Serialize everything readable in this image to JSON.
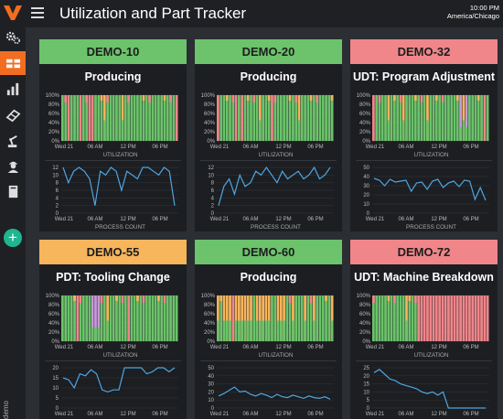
{
  "header": {
    "title": "Utilization and Part Tracker",
    "time": "10:00 PM",
    "timezone": "America/Chicago"
  },
  "sidebar": {
    "footer_text": "demo"
  },
  "colors": {
    "green": "#6cc36b",
    "red": "#f0868a",
    "yellow": "#f7b55c",
    "purple": "#c79ad8",
    "orange_accent": "#f26d21",
    "teal": "#1fb58f",
    "line": "#4ea6e2"
  },
  "captions": {
    "utilization": "UTILIZATION",
    "process_count": "PROCESS COUNT"
  },
  "time_labels": [
    "Wed 21",
    "06 AM",
    "12 PM",
    "06 PM"
  ],
  "util_ticks": [
    "100%",
    "80%",
    "60%",
    "40%",
    "20%",
    "0%"
  ],
  "machines": [
    {
      "id": "DEMO-10",
      "state": "Producing",
      "status": "green",
      "util_pattern": "GGRGGGRGGRRGGGYGGGGGYGGGGGGGGGGGGGGGGGR",
      "y_ticks": [
        "12",
        "10",
        "8",
        "6",
        "4",
        "2",
        "0"
      ],
      "y_max": 12,
      "process_count": [
        12,
        8,
        11,
        12,
        11,
        9,
        2,
        11,
        10,
        12,
        11,
        6,
        11,
        10,
        9,
        12,
        12,
        11,
        10,
        12,
        11,
        2
      ]
    },
    {
      "id": "DEMO-20",
      "state": "Producing",
      "status": "green",
      "util_pattern": "RGGGGGRGRGGGGGYGGGRGGGGGGGGYGGGGGGGGGGG",
      "y_ticks": [
        "12",
        "10",
        "8",
        "6",
        "4",
        "2",
        "0"
      ],
      "y_max": 12,
      "process_count": [
        2,
        7,
        9,
        5,
        10,
        7,
        8,
        11,
        10,
        12,
        10,
        8,
        11,
        9,
        10,
        11,
        9,
        10,
        12,
        9,
        10,
        12
      ]
    },
    {
      "id": "DEMO-32",
      "state": "UDT: Program Adjustment",
      "status": "red",
      "util_pattern": "RGGGGYGGGGYGGGGGGGYGGGGGGGGGGPYPGGGGGRG",
      "y_ticks": [
        "50",
        "40",
        "30",
        "20",
        "10",
        "0"
      ],
      "y_max": 50,
      "process_count": [
        38,
        36,
        30,
        37,
        34,
        35,
        36,
        24,
        33,
        34,
        26,
        35,
        37,
        28,
        33,
        35,
        29,
        36,
        35,
        15,
        28,
        14
      ]
    },
    {
      "id": "DEMO-55",
      "state": "PDT: Tooling Change",
      "status": "yellow",
      "util_pattern": "GGGGGRGGGGPPPGGYGGGGGGRGGGGGGGGGGGGGGGG",
      "y_ticks": [
        "20",
        "15",
        "10",
        "5",
        "0"
      ],
      "y_max": 24,
      "process_count": [
        15,
        14,
        10,
        17,
        16,
        19,
        17,
        9,
        8,
        9,
        9,
        23,
        24,
        22,
        23,
        17,
        18,
        22,
        21,
        18,
        22
      ]
    },
    {
      "id": "DEMO-60",
      "state": "Producing",
      "status": "green",
      "util_pattern": "YGYYYRYYYYYYGYYYYYGGYYYGGYGGGYGGYGGGGGY",
      "y_ticks": [
        "50",
        "40",
        "30",
        "20",
        "10",
        "0"
      ],
      "y_max": 50,
      "process_count": [
        15,
        18,
        22,
        26,
        20,
        21,
        17,
        15,
        18,
        16,
        13,
        17,
        14,
        13,
        16,
        14,
        12,
        15,
        13,
        12,
        14,
        11
      ]
    },
    {
      "id": "DEMO-72",
      "state": "UDT: Machine Breakdown",
      "status": "red",
      "util_pattern": "GGGGGGGGGGGYGGGRRRRRRRRRRRRRRRRRRRRRRRR",
      "y_ticks": [
        "25",
        "20",
        "15",
        "10",
        "5",
        "0"
      ],
      "y_max": 25,
      "process_count": [
        22,
        24,
        21,
        18,
        17,
        15,
        14,
        13,
        12,
        10,
        9,
        10,
        8,
        10,
        0,
        0,
        0,
        0,
        0,
        0,
        0,
        0
      ]
    }
  ]
}
